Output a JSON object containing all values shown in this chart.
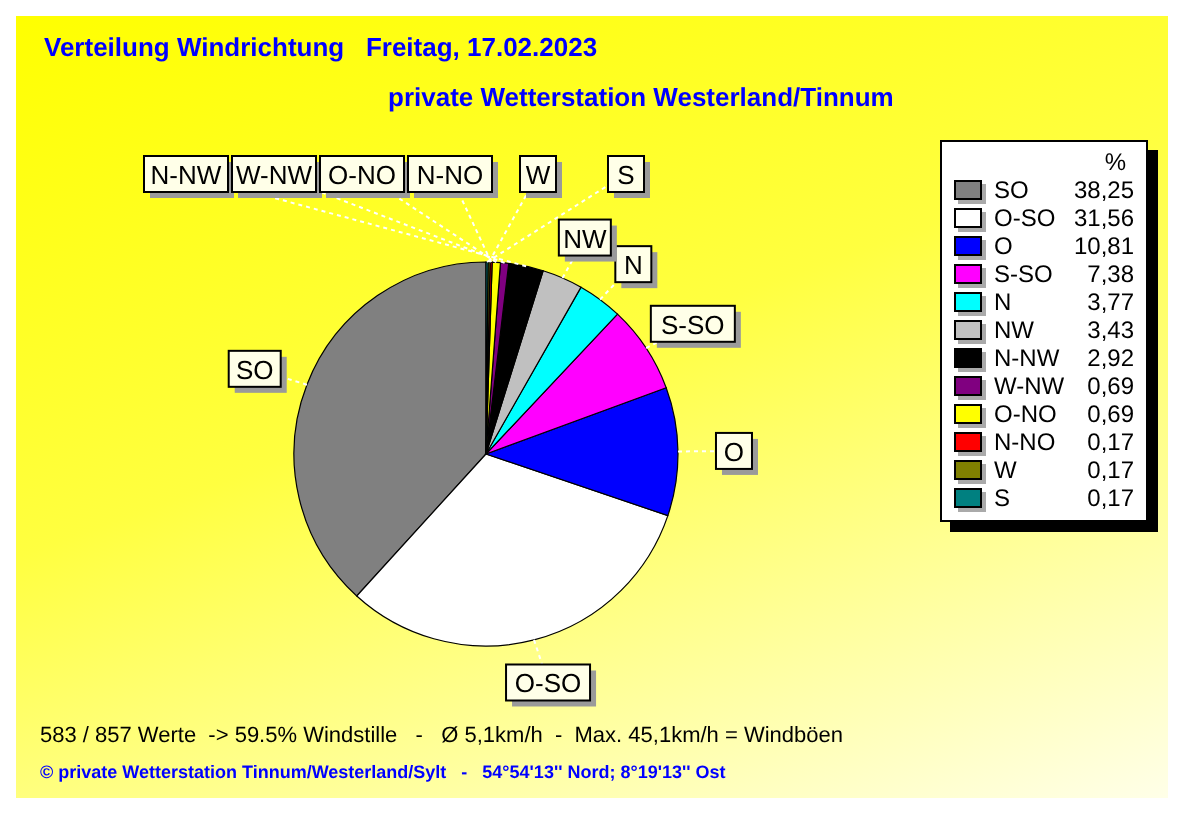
{
  "chart_data": {
    "type": "pie",
    "title": "Verteilung Windrichtung   Freitag, 17.02.2023",
    "subtitle": "private Wetterstation Westerland/Tinnum",
    "categories": [
      "SO",
      "O-SO",
      "O",
      "S-SO",
      "N",
      "NW",
      "N-NW",
      "W-NW",
      "O-NO",
      "N-NO",
      "W",
      "S"
    ],
    "values": [
      38.25,
      31.56,
      10.81,
      7.38,
      3.77,
      3.43,
      2.92,
      0.69,
      0.69,
      0.17,
      0.17,
      0.17
    ],
    "colors": [
      "#808080",
      "#ffffff",
      "#0000ff",
      "#ff00ff",
      "#00ffff",
      "#c0c0c0",
      "#000000",
      "#800080",
      "#ffff00",
      "#ff0000",
      "#808000",
      "#008080"
    ],
    "value_labels": [
      "38,25",
      "31,56",
      "10,81",
      "7,38",
      "3,77",
      "3,43",
      "2,92",
      "0,69",
      "0,69",
      "0,17",
      "0,17",
      "0,17"
    ],
    "legend": "right",
    "legend_title": "%",
    "annotations": [
      "583 / 857 Werte  -> 59.5% Windstille   -   Ø 5,1km/h  -  Max. 45,1km/h = Windböen",
      "© private Wetterstation Tinnum/Westerland/Sylt   -   54°54'13'' Nord; 8°19'13'' Ost"
    ]
  }
}
